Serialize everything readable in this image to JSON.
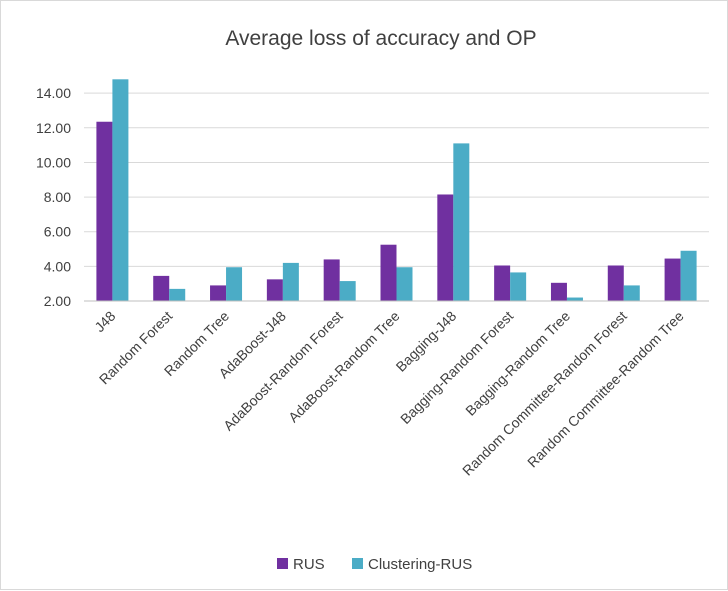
{
  "chart_data": {
    "type": "bar",
    "title": "Average loss of accuracy and OP",
    "xlabel": "",
    "ylabel": "",
    "ylim": [
      2.0,
      15.0
    ],
    "yticks": [
      "2.00",
      "4.00",
      "6.00",
      "8.00",
      "10.00",
      "12.00",
      "14.00"
    ],
    "grid": true,
    "legend_position": "bottom",
    "categories": [
      "J48",
      "Random Forest",
      "Random Tree",
      "AdaBoost-J48",
      "AdaBoost-Random Forest",
      "AdaBoost-Random Tree",
      "Bagging-J48",
      "Bagging-Random Forest",
      "Bagging-Random Tree",
      "Random Committee-Random Forest",
      "Random Committee-Random Tree"
    ],
    "series": [
      {
        "name": "RUS",
        "color": "#7030a0",
        "values": [
          12.35,
          3.45,
          2.9,
          3.25,
          4.4,
          5.25,
          8.15,
          4.05,
          3.05,
          4.05,
          4.45
        ]
      },
      {
        "name": "Clustering-RUS",
        "color": "#4bacc6",
        "values": [
          14.8,
          2.7,
          3.95,
          4.2,
          3.15,
          3.95,
          11.1,
          3.65,
          2.2,
          2.9,
          4.9
        ]
      }
    ]
  }
}
